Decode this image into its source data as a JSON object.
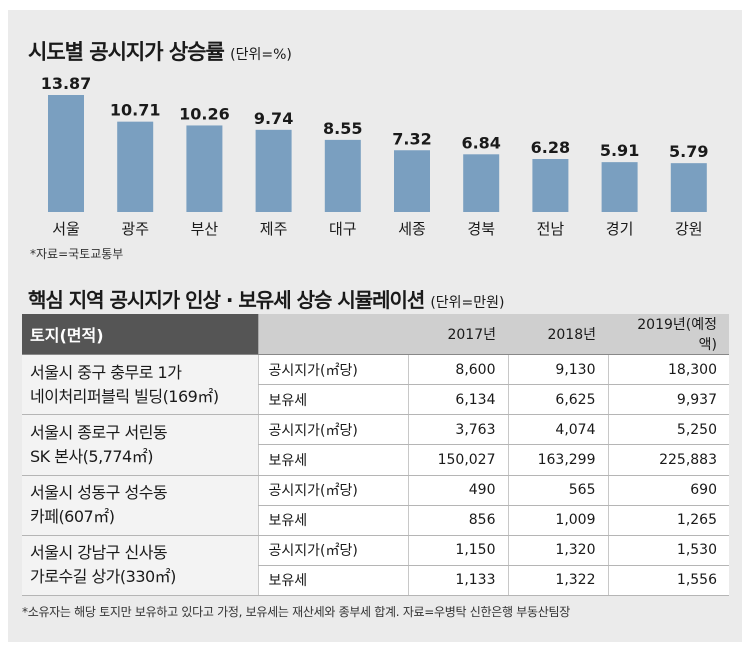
{
  "colors": {
    "bar": "#7a9fc0",
    "header_dark": "#555555",
    "header_light": "#cfcfcf",
    "panel": "#ebebeb"
  },
  "chart_title": "시도별 공시지가 상승률",
  "chart_unit": "(단위=%)",
  "chart_data": {
    "type": "bar",
    "categories": [
      "서울",
      "광주",
      "부산",
      "제주",
      "대구",
      "세종",
      "경북",
      "전남",
      "경기",
      "강원"
    ],
    "values": [
      13.87,
      10.71,
      10.26,
      9.74,
      8.55,
      7.32,
      6.84,
      6.28,
      5.91,
      5.79
    ],
    "value_labels": [
      "13.87",
      "10.71",
      "10.26",
      "9.74",
      "8.55",
      "7.32",
      "6.84",
      "6.28",
      "5.91",
      "5.79"
    ],
    "ylim": [
      0,
      14
    ],
    "grid": false,
    "legend": "none"
  },
  "chart_note": "*자료=국토교통부",
  "sim_title": "핵심 지역 공시지가 인상 · 보유세 상승 시뮬레이션",
  "sim_unit": "(단위=만원)",
  "table": {
    "header": {
      "first": "토지(면적)",
      "cols": [
        "2017년",
        "2018년",
        "2019년(예정액)"
      ]
    },
    "groups": [
      {
        "loc_line1": "서울시 중구 충무로 1가",
        "loc_line2": "네이처리퍼블릭 빌딩(169㎡)",
        "rows": [
          {
            "item": "공시지가(㎡당)",
            "values": [
              "8,600",
              "9,130",
              "18,300"
            ]
          },
          {
            "item": "보유세",
            "values": [
              "6,134",
              "6,625",
              "9,937"
            ]
          }
        ]
      },
      {
        "loc_line1": "서울시 종로구 서린동",
        "loc_line2": "SK 본사(5,774㎡)",
        "rows": [
          {
            "item": "공시지가(㎡당)",
            "values": [
              "3,763",
              "4,074",
              "5,250"
            ]
          },
          {
            "item": "보유세",
            "values": [
              "150,027",
              "163,299",
              "225,883"
            ]
          }
        ]
      },
      {
        "loc_line1": "서울시 성동구 성수동",
        "loc_line2": "카페(607㎡)",
        "rows": [
          {
            "item": "공시지가(㎡당)",
            "values": [
              "490",
              "565",
              "690"
            ]
          },
          {
            "item": "보유세",
            "values": [
              "856",
              "1,009",
              "1,265"
            ]
          }
        ]
      },
      {
        "loc_line1": "서울시 강남구 신사동",
        "loc_line2": "가로수길 상가(330㎡)",
        "rows": [
          {
            "item": "공시지가(㎡당)",
            "values": [
              "1,150",
              "1,320",
              "1,530"
            ]
          },
          {
            "item": "보유세",
            "values": [
              "1,133",
              "1,322",
              "1,556"
            ]
          }
        ]
      }
    ]
  },
  "footnote": "*소유자는 해당 토지만 보유하고 있다고 가정, 보유세는 재산세와 종부세 합계. 자료=우병탁 신한은행 부동산팀장"
}
